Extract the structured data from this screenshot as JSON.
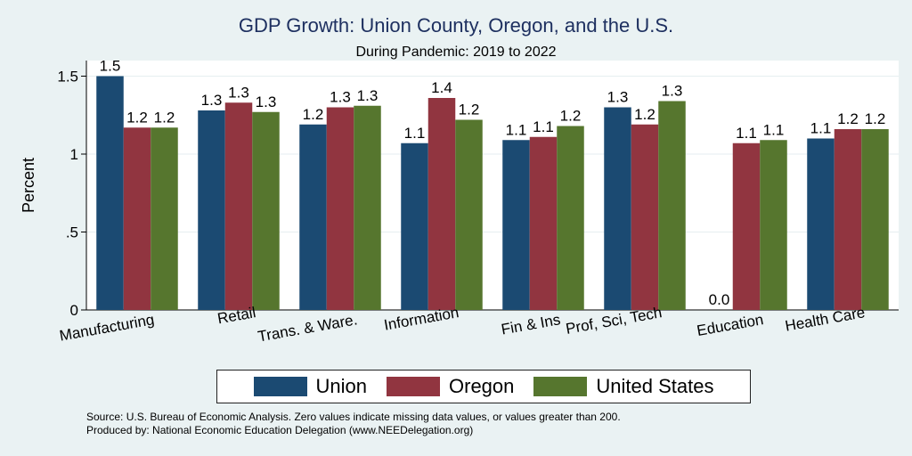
{
  "chart_data": {
    "type": "bar",
    "title": "GDP Growth: Union County, Oregon, and the U.S.",
    "subtitle": "During Pandemic: 2019 to 2022",
    "ylabel": "Percent",
    "xlabel": "",
    "ylim": [
      0,
      1.6
    ],
    "yticks": [
      0,
      0.5,
      1,
      1.5
    ],
    "ytick_labels": [
      "0",
      ".5",
      "1",
      "1.5"
    ],
    "categories": [
      "Manufacturing",
      "Retail",
      "Trans. & Ware.",
      "Information",
      "Fin & Ins",
      "Prof, Sci, Tech",
      "Education",
      "Health Care"
    ],
    "series": [
      {
        "name": "Union",
        "color": "#1b4a72",
        "values": [
          1.5,
          1.28,
          1.19,
          1.07,
          1.09,
          1.3,
          0.0,
          1.1
        ],
        "labels": [
          "1.5",
          "1.3",
          "1.2",
          "1.1",
          "1.1",
          "1.3",
          "0.0",
          "1.1"
        ]
      },
      {
        "name": "Oregon",
        "color": "#913540",
        "values": [
          1.17,
          1.33,
          1.3,
          1.36,
          1.11,
          1.19,
          1.07,
          1.16
        ],
        "labels": [
          "1.2",
          "1.3",
          "1.3",
          "1.4",
          "1.1",
          "1.2",
          "1.1",
          "1.2"
        ]
      },
      {
        "name": "United States",
        "color": "#56762e",
        "values": [
          1.17,
          1.27,
          1.31,
          1.22,
          1.18,
          1.34,
          1.09,
          1.16
        ],
        "labels": [
          "1.2",
          "1.3",
          "1.3",
          "1.2",
          "1.2",
          "1.3",
          "1.1",
          "1.2"
        ]
      }
    ],
    "grid": true,
    "legend_position": "bottom"
  },
  "notes": {
    "source": "Source: U.S. Bureau of Economic Analysis. Zero values indicate missing data values, or values greater than 200.",
    "produced_by": "Produced by: National Economic Education Delegation (www.NEEDelegation.org)"
  }
}
